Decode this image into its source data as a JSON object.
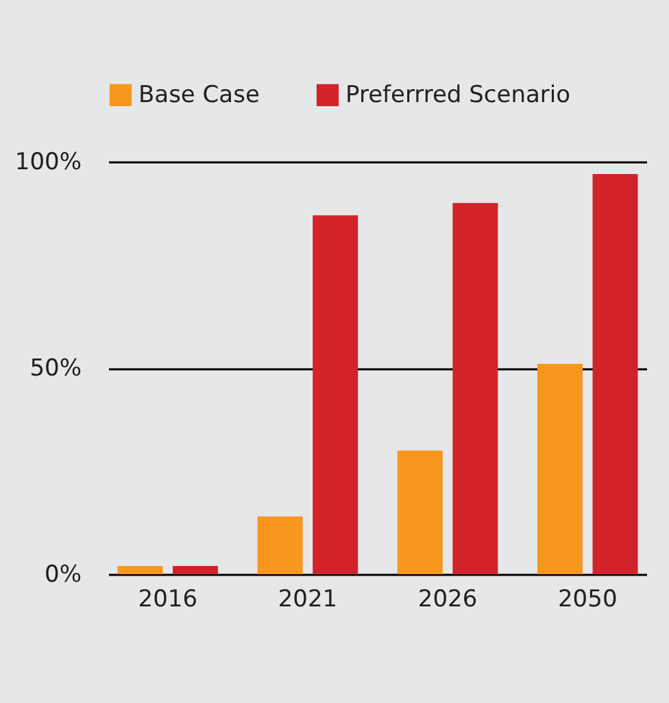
{
  "chart_data": {
    "type": "bar",
    "categories": [
      "2016",
      "2021",
      "2026",
      "2050"
    ],
    "series": [
      {
        "name": "Base Case",
        "color": "#f7971e",
        "values": [
          2,
          14,
          30,
          51
        ]
      },
      {
        "name": "Preferrred Scenario",
        "color": "#d2232a",
        "values": [
          2,
          87,
          90,
          97
        ]
      }
    ],
    "ylim": [
      0,
      100
    ],
    "yticks": [
      {
        "value": 0,
        "label": "0%"
      },
      {
        "value": 50,
        "label": "50%"
      },
      {
        "value": 100,
        "label": "100%"
      }
    ],
    "grid": "y",
    "legend": "top left"
  }
}
